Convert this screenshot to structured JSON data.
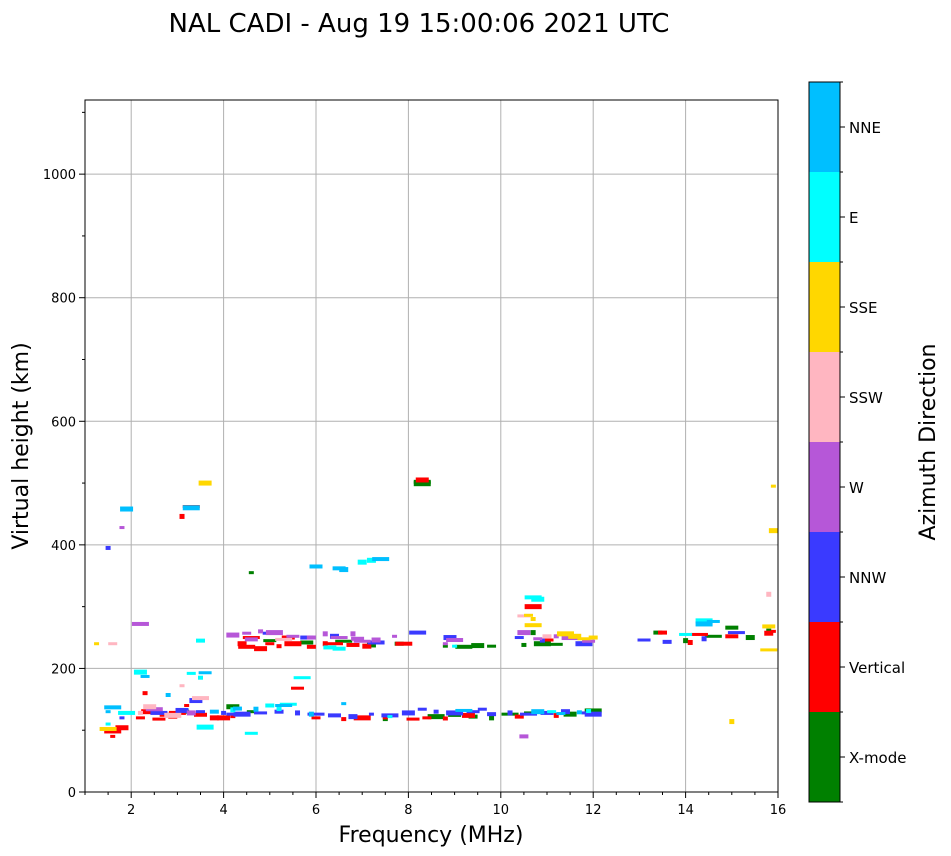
{
  "chart_data": {
    "type": "scatter",
    "title": "NAL CADI - Aug 19 15:00:06 2021 UTC",
    "xlabel": "Frequency (MHz)",
    "ylabel": "Virtual height (km)",
    "xlim": [
      1,
      16
    ],
    "ylim": [
      0,
      1120
    ],
    "xticks": [
      2,
      4,
      6,
      8,
      10,
      12,
      14,
      16
    ],
    "yticks": [
      0,
      200,
      400,
      600,
      800,
      1000
    ],
    "xminor_step": 0.5,
    "yminor_step": 100,
    "grid": true,
    "colorbar": {
      "label": "Azimuth Direction",
      "categories": [
        {
          "name": "X-mode",
          "color": "#008000"
        },
        {
          "name": "Vertical",
          "color": "#ff0000"
        },
        {
          "name": "NNW",
          "color": "#3a3aff"
        },
        {
          "name": "W",
          "color": "#b657d8"
        },
        {
          "name": "SSW",
          "color": "#ffb6c1"
        },
        {
          "name": "SSE",
          "color": "#ffd700"
        },
        {
          "name": "E",
          "color": "#00ffff"
        },
        {
          "name": "NNE",
          "color": "#00bfff"
        }
      ]
    },
    "series": [
      {
        "name": "X-mode",
        "points": [
          [
            4.6,
            355
          ],
          [
            8.3,
            502
          ],
          [
            4.2,
            138
          ],
          [
            4.6,
            130
          ],
          [
            7.5,
            118
          ],
          [
            8.6,
            122
          ],
          [
            9.0,
            124
          ],
          [
            9.4,
            122
          ],
          [
            9.8,
            120
          ],
          [
            10.2,
            126
          ],
          [
            5.8,
            242
          ],
          [
            7.2,
            238
          ],
          [
            8.8,
            236
          ],
          [
            9.2,
            235
          ],
          [
            9.5,
            237
          ],
          [
            9.8,
            236
          ],
          [
            10.5,
            238
          ],
          [
            10.9,
            240
          ],
          [
            11.2,
            239
          ],
          [
            13.4,
            258
          ],
          [
            14.0,
            245
          ],
          [
            14.6,
            252
          ],
          [
            15.0,
            266
          ],
          [
            15.4,
            250
          ],
          [
            15.8,
            262
          ],
          [
            12.0,
            132
          ],
          [
            11.5,
            126
          ],
          [
            10.6,
            128
          ],
          [
            3.2,
            130
          ],
          [
            8.3,
            499
          ],
          [
            5.0,
            245
          ],
          [
            7.8,
            240
          ],
          [
            10.7,
            258
          ],
          [
            6.6,
            244
          ]
        ]
      },
      {
        "name": "Vertical",
        "points": [
          [
            1.6,
            90
          ],
          [
            1.6,
            98
          ],
          [
            1.8,
            104
          ],
          [
            2.2,
            120
          ],
          [
            2.3,
            160
          ],
          [
            2.4,
            130
          ],
          [
            2.6,
            118
          ],
          [
            2.9,
            122
          ],
          [
            3.1,
            446
          ],
          [
            3.3,
            462
          ],
          [
            3.5,
            125
          ],
          [
            3.8,
            120
          ],
          [
            4.2,
            122
          ],
          [
            4.5,
            235
          ],
          [
            4.8,
            232
          ],
          [
            5.0,
            240
          ],
          [
            5.2,
            236
          ],
          [
            5.5,
            240
          ],
          [
            5.6,
            168
          ],
          [
            5.9,
            235
          ],
          [
            6.2,
            240
          ],
          [
            6.4,
            240
          ],
          [
            6.8,
            238
          ],
          [
            7.1,
            236
          ],
          [
            7.5,
            120
          ],
          [
            7.9,
            240
          ],
          [
            8.3,
            505
          ],
          [
            8.4,
            120
          ],
          [
            8.8,
            119
          ],
          [
            10.7,
            300
          ],
          [
            11.0,
            246
          ],
          [
            13.5,
            258
          ],
          [
            14.1,
            242
          ],
          [
            14.3,
            255
          ],
          [
            15.0,
            252
          ],
          [
            15.8,
            257
          ],
          [
            15.9,
            260
          ],
          [
            3.0,
            128
          ],
          [
            4.0,
            120
          ],
          [
            6.0,
            120
          ],
          [
            6.6,
            118
          ],
          [
            7.0,
            120
          ],
          [
            8.1,
            118
          ],
          [
            10.4,
            122
          ],
          [
            11.2,
            124
          ],
          [
            4.6,
            250
          ],
          [
            5.4,
            250
          ],
          [
            4.4,
            240
          ],
          [
            3.2,
            140
          ],
          [
            2.8,
            125
          ],
          [
            9.3,
            124
          ]
        ]
      },
      {
        "name": "NNW",
        "points": [
          [
            1.8,
            120
          ],
          [
            2.6,
            128
          ],
          [
            3.1,
            132
          ],
          [
            3.5,
            130
          ],
          [
            4.0,
            128
          ],
          [
            4.4,
            126
          ],
          [
            4.8,
            128
          ],
          [
            5.2,
            130
          ],
          [
            5.6,
            128
          ],
          [
            6.0,
            126
          ],
          [
            6.4,
            124
          ],
          [
            6.8,
            122
          ],
          [
            7.2,
            126
          ],
          [
            7.6,
            124
          ],
          [
            8.0,
            128
          ],
          [
            8.3,
            134
          ],
          [
            8.6,
            130
          ],
          [
            9.0,
            128
          ],
          [
            9.4,
            130
          ],
          [
            9.8,
            126
          ],
          [
            10.2,
            128
          ],
          [
            10.6,
            126
          ],
          [
            11.0,
            128
          ],
          [
            11.4,
            130
          ],
          [
            11.8,
            128
          ],
          [
            8.2,
            258
          ],
          [
            8.9,
            250
          ],
          [
            10.4,
            250
          ],
          [
            10.9,
            245
          ],
          [
            11.8,
            240
          ],
          [
            13.1,
            246
          ],
          [
            13.6,
            243
          ],
          [
            14.4,
            248
          ],
          [
            15.1,
            258
          ],
          [
            5.8,
            250
          ],
          [
            6.4,
            252
          ],
          [
            4.9,
            257
          ],
          [
            7.3,
            242
          ],
          [
            3.4,
            148
          ],
          [
            9.6,
            134
          ],
          [
            1.5,
            395
          ],
          [
            12.0,
            126
          ],
          [
            4.2,
            126
          ]
        ]
      },
      {
        "name": "W",
        "points": [
          [
            1.8,
            428
          ],
          [
            2.2,
            272
          ],
          [
            4.2,
            254
          ],
          [
            4.5,
            257
          ],
          [
            4.8,
            260
          ],
          [
            5.1,
            258
          ],
          [
            5.5,
            252
          ],
          [
            5.9,
            250
          ],
          [
            6.2,
            256
          ],
          [
            6.5,
            250
          ],
          [
            6.9,
            248
          ],
          [
            7.3,
            246
          ],
          [
            7.7,
            252
          ],
          [
            9.0,
            246
          ],
          [
            10.5,
            258
          ],
          [
            10.8,
            248
          ],
          [
            11.2,
            252
          ],
          [
            11.5,
            250
          ],
          [
            11.9,
            244
          ],
          [
            10.5,
            90
          ],
          [
            6.8,
            256
          ],
          [
            7.0,
            244
          ],
          [
            4.6,
            247
          ],
          [
            3.3,
            128
          ],
          [
            8.8,
            240
          ],
          [
            2.5,
            134
          ]
        ]
      },
      {
        "name": "SSW",
        "points": [
          [
            3.1,
            172
          ],
          [
            3.5,
            152
          ],
          [
            2.4,
            138
          ],
          [
            1.6,
            240
          ],
          [
            2.2,
            128
          ],
          [
            2.9,
            124
          ],
          [
            10.5,
            285
          ],
          [
            11.0,
            252
          ],
          [
            15.8,
            320
          ],
          [
            5.3,
            247
          ]
        ]
      },
      {
        "name": "SSE",
        "points": [
          [
            1.25,
            240
          ],
          [
            1.5,
            102
          ],
          [
            3.6,
            500
          ],
          [
            10.6,
            286
          ],
          [
            10.7,
            280
          ],
          [
            11.4,
            256
          ],
          [
            11.8,
            248
          ],
          [
            12.0,
            250
          ],
          [
            15.0,
            114
          ],
          [
            15.8,
            230
          ],
          [
            15.8,
            268
          ],
          [
            15.9,
            423
          ],
          [
            15.9,
            495
          ],
          [
            10.7,
            270
          ],
          [
            11.6,
            252
          ]
        ]
      },
      {
        "name": "E",
        "points": [
          [
            1.5,
            110
          ],
          [
            1.9,
            128
          ],
          [
            2.2,
            194
          ],
          [
            3.3,
            192
          ],
          [
            3.5,
            185
          ],
          [
            3.6,
            105
          ],
          [
            4.6,
            95
          ],
          [
            5.0,
            140
          ],
          [
            5.2,
            135
          ],
          [
            5.7,
            185
          ],
          [
            6.5,
            232
          ],
          [
            7.2,
            375
          ],
          [
            7.6,
            122
          ],
          [
            10.7,
            315
          ],
          [
            10.8,
            312
          ],
          [
            11.1,
            130
          ],
          [
            11.9,
            131
          ],
          [
            14.4,
            277
          ],
          [
            14.0,
            255
          ],
          [
            3.5,
            245
          ],
          [
            4.2,
            133
          ],
          [
            5.4,
            142
          ],
          [
            6.3,
            234
          ],
          [
            7.0,
            372
          ],
          [
            9.0,
            236
          ]
        ]
      },
      {
        "name": "NNE",
        "points": [
          [
            1.5,
            130
          ],
          [
            1.6,
            137
          ],
          [
            1.9,
            458
          ],
          [
            2.3,
            187
          ],
          [
            2.8,
            157
          ],
          [
            3.3,
            460
          ],
          [
            3.6,
            193
          ],
          [
            4.3,
            135
          ],
          [
            4.7,
            134
          ],
          [
            5.3,
            140
          ],
          [
            6.0,
            365
          ],
          [
            6.6,
            360
          ],
          [
            6.6,
            143
          ],
          [
            7.4,
            377
          ],
          [
            10.8,
            130
          ],
          [
            11.3,
            127
          ],
          [
            11.7,
            129
          ],
          [
            14.4,
            272
          ],
          [
            14.6,
            276
          ],
          [
            3.8,
            130
          ],
          [
            5.9,
            126
          ],
          [
            9.2,
            132
          ],
          [
            6.5,
            362
          ]
        ]
      }
    ]
  }
}
